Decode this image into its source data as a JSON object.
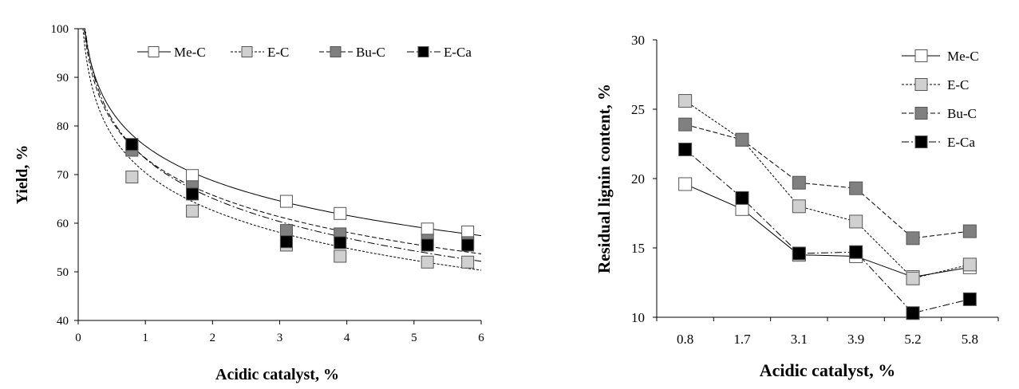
{
  "chart_data": [
    {
      "type": "scatter",
      "title": "",
      "xlabel": "Acidic catalyst, %",
      "ylabel": "Yield, %",
      "xlim": [
        0,
        6
      ],
      "ylim": [
        40,
        100
      ],
      "xticks": [
        "0",
        "1",
        "2",
        "3",
        "4",
        "5",
        "6"
      ],
      "yticks": [
        "40",
        "50",
        "60",
        "70",
        "80",
        "90",
        "100"
      ],
      "legend_position": "top",
      "series": [
        {
          "name": "Me-C",
          "marker": "#ffffff",
          "dash": "solid",
          "x": [
            0.8,
            1.7,
            3.1,
            3.9,
            5.2,
            5.8
          ],
          "y": [
            75.5,
            69.8,
            64.5,
            62.0,
            58.8,
            58.2
          ],
          "fit": {
            "a": 75.9,
            "b": 10.3
          }
        },
        {
          "name": "E-C",
          "marker": "#d0d0d0",
          "dash": "dotted",
          "x": [
            0.8,
            1.7,
            3.1,
            3.9,
            5.2,
            5.8
          ],
          "y": [
            69.5,
            62.5,
            55.5,
            53.2,
            52.0,
            52.0
          ],
          "fit": {
            "a": 70.4,
            "b": 11.2
          }
        },
        {
          "name": "Bu-C",
          "marker": "#808080",
          "dash": "dashed",
          "x": [
            0.8,
            1.7,
            3.1,
            3.9,
            5.2,
            5.8
          ],
          "y": [
            75.0,
            67.5,
            58.5,
            57.8,
            56.5,
            56.0
          ],
          "fit": {
            "a": 73.4,
            "b": 11.0
          }
        },
        {
          "name": "E-Ca",
          "marker": "#000000",
          "dash": "dashdot",
          "x": [
            0.8,
            1.7,
            3.1,
            3.9,
            5.2,
            5.8
          ],
          "y": [
            76.2,
            66.0,
            56.2,
            56.0,
            55.5,
            55.5
          ],
          "fit": {
            "a": 73.3,
            "b": 11.8
          }
        }
      ]
    },
    {
      "type": "line",
      "title": "",
      "xlabel": "Acidic catalyst, %",
      "ylabel": "Residual lignin content, %",
      "categories": [
        "0.8",
        "1.7",
        "3.1",
        "3.9",
        "5.2",
        "5.8"
      ],
      "ylim": [
        10,
        30
      ],
      "yticks": [
        "10",
        "15",
        "20",
        "25",
        "30"
      ],
      "legend_position": "top-right",
      "series": [
        {
          "name": "Me-C",
          "marker": "#ffffff",
          "dash": "solid",
          "values": [
            19.6,
            17.8,
            14.5,
            14.4,
            12.9,
            13.6
          ]
        },
        {
          "name": "E-C",
          "marker": "#d0d0d0",
          "dash": "dotted",
          "values": [
            25.6,
            22.8,
            18.0,
            16.9,
            12.8,
            13.8
          ]
        },
        {
          "name": "Bu-C",
          "marker": "#808080",
          "dash": "dashed",
          "values": [
            23.9,
            22.8,
            19.7,
            19.3,
            15.7,
            16.2
          ]
        },
        {
          "name": "E-Ca",
          "marker": "#000000",
          "dash": "dashdot",
          "values": [
            22.1,
            18.6,
            14.6,
            14.7,
            10.3,
            11.3
          ]
        }
      ]
    }
  ]
}
